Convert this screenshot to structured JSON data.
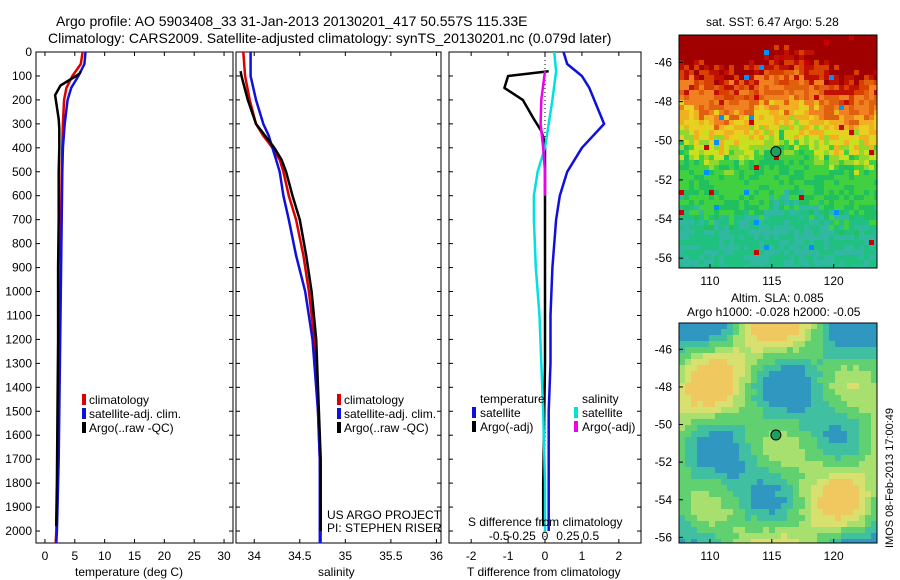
{
  "header": {
    "title_line1": "Argo profile: AO 5903408_33 31-Jan-2013 20130201_417 50.557S 115.33E",
    "title_line2": "Climatology: CARS2009. Satellite-adjusted climatology: synTS_20130201.nc (0.079d later)"
  },
  "credits": {
    "project": "US ARGO PROJECT",
    "pi": "PI: STEPHEN RISER",
    "stamp": "IMOS 08-Feb-2013 17:00:49"
  },
  "colors": {
    "climatology": "#dd0000",
    "satellite": "#1010dd",
    "argo": "#000000",
    "s_satellite": "#00e0e0",
    "s_argo": "#ee00ee"
  },
  "chart_data": [
    {
      "type": "line",
      "name": "temperature-profile",
      "xlabel": "temperature (deg C)",
      "xticks": [
        0,
        5,
        10,
        15,
        20,
        25,
        30
      ],
      "xlim": [
        -1.5,
        31.5
      ],
      "ylim": [
        0,
        2050
      ],
      "yticks": [
        0,
        100,
        200,
        300,
        400,
        500,
        600,
        700,
        800,
        900,
        1000,
        1100,
        1200,
        1300,
        1400,
        1500,
        1600,
        1700,
        1800,
        1900,
        2000
      ],
      "y_reversed": true,
      "legend": [
        "climatology",
        "satellite-adj. clim.",
        "Argo(..raw -QC)"
      ],
      "series": [
        {
          "name": "climatology",
          "color": "#dd0000",
          "x": [
            6.3,
            6.0,
            4.6,
            3.6,
            3.2,
            3.0,
            2.9,
            2.8,
            2.7,
            2.6,
            2.5,
            2.4,
            2.3,
            2.2,
            2.1,
            2.0,
            1.9,
            1.8
          ],
          "y": [
            0,
            50,
            100,
            150,
            200,
            300,
            400,
            500,
            700,
            900,
            1100,
            1300,
            1500,
            1700,
            1800,
            1900,
            2000,
            2050
          ]
        },
        {
          "name": "satellite-adj. clim.",
          "color": "#1010dd",
          "x": [
            6.8,
            6.6,
            5.6,
            4.4,
            3.8,
            3.3,
            3.0,
            2.9,
            2.8,
            2.7,
            2.6,
            2.5,
            2.4,
            2.3,
            2.2,
            2.1,
            2.0,
            1.9
          ],
          "y": [
            0,
            50,
            100,
            150,
            200,
            300,
            400,
            500,
            700,
            900,
            1100,
            1300,
            1500,
            1700,
            1800,
            1900,
            2000,
            2050
          ]
        },
        {
          "name": "Argo(..raw -QC)",
          "color": "#000000",
          "x": [
            6.0,
            5.8,
            5.2,
            2.6,
            1.7,
            2.0,
            2.3,
            2.4,
            2.4,
            2.3,
            2.3,
            2.2,
            2.2,
            2.1,
            2.0,
            1.9,
            1.9
          ],
          "y": [
            80,
            90,
            100,
            140,
            180,
            230,
            280,
            320,
            400,
            500,
            700,
            900,
            1200,
            1500,
            1800,
            1950,
            1980
          ]
        }
      ]
    },
    {
      "type": "line",
      "name": "salinity-profile",
      "xlabel": "salinity",
      "xticks": [
        34,
        34.5,
        35,
        35.5,
        36
      ],
      "xlim": [
        33.8,
        36.05
      ],
      "ylim": [
        0,
        2050
      ],
      "y_reversed": true,
      "legend": [
        "climatology",
        "satellite-adj. clim.",
        "Argo(..raw -QC)"
      ],
      "series": [
        {
          "name": "climatology",
          "color": "#dd0000",
          "x": [
            33.88,
            33.9,
            33.95,
            34.02,
            34.1,
            34.2,
            34.28,
            34.32,
            34.38,
            34.46,
            34.54,
            34.6,
            34.66,
            34.7,
            34.72,
            34.73,
            34.73
          ],
          "y": [
            0,
            100,
            200,
            300,
            350,
            400,
            450,
            500,
            600,
            700,
            850,
            1000,
            1200,
            1500,
            1700,
            1900,
            2050
          ]
        },
        {
          "name": "satellite-adj. clim.",
          "color": "#1010dd",
          "x": [
            33.96,
            33.96,
            34.02,
            34.1,
            34.16,
            34.2,
            34.24,
            34.28,
            34.32,
            34.38,
            34.46,
            34.56,
            34.64,
            34.7,
            34.72,
            34.72,
            34.72
          ],
          "y": [
            0,
            100,
            200,
            300,
            350,
            400,
            450,
            500,
            600,
            700,
            850,
            1000,
            1200,
            1500,
            1700,
            1900,
            2050
          ]
        },
        {
          "name": "Argo(..raw -QC)",
          "color": "#000000",
          "x": [
            33.85,
            33.86,
            33.93,
            34.02,
            34.12,
            34.22,
            34.3,
            34.35,
            34.42,
            34.5,
            34.57,
            34.63,
            34.68,
            34.71,
            34.73,
            34.73,
            34.73
          ],
          "y": [
            80,
            100,
            200,
            300,
            350,
            400,
            450,
            500,
            600,
            700,
            850,
            1000,
            1200,
            1500,
            1700,
            1900,
            2000
          ]
        }
      ]
    },
    {
      "type": "line",
      "name": "difference-profile",
      "xlabel": "T difference from climatology",
      "xlabel_top": "S difference from climatology",
      "xticks": [
        -2,
        -1,
        0,
        1,
        2
      ],
      "xticks_top": [
        "-0.5",
        "-0.25",
        "0",
        "0.25",
        "0.5"
      ],
      "xlim": [
        -2.6,
        2.6
      ],
      "ylim": [
        0,
        2050
      ],
      "y_reversed": true,
      "legend_groups": [
        {
          "title": "temperature",
          "items": [
            "satellite",
            "Argo(-adj)"
          ]
        },
        {
          "title": "salinity",
          "items": [
            "satellite",
            "Argo(-adj)"
          ]
        }
      ],
      "series": [
        {
          "name": "temperature satellite",
          "color": "#1010dd",
          "x": [
            0.5,
            0.6,
            1.0,
            1.2,
            1.6,
            1.0,
            0.6,
            0.4,
            0.3,
            0.2,
            0.15,
            0.15,
            0.1,
            0.1,
            0.1,
            0.1
          ],
          "y": [
            0,
            50,
            100,
            150,
            300,
            400,
            500,
            600,
            700,
            900,
            1100,
            1300,
            1500,
            1700,
            1900,
            2000
          ]
        },
        {
          "name": "temperature Argo(-adj)",
          "color": "#000000",
          "x": [
            0.1,
            -1.0,
            -1.1,
            -0.6,
            -0.3,
            -0.1,
            0.0,
            0.0,
            0.0,
            0.0,
            0.0,
            0.0,
            -0.05,
            -0.05
          ],
          "y": [
            80,
            100,
            150,
            200,
            280,
            330,
            380,
            450,
            600,
            800,
            1000,
            1300,
            1800,
            1980
          ]
        },
        {
          "name": "salinity satellite",
          "color": "#00e0e0",
          "x": [
            0.25,
            0.3,
            0.2,
            0.1,
            0.0,
            -0.2,
            -0.3,
            -0.3,
            -0.25,
            -0.15,
            -0.1,
            -0.05,
            0.0,
            0.0
          ],
          "y": [
            0,
            80,
            200,
            300,
            400,
            500,
            600,
            700,
            900,
            1100,
            1300,
            1500,
            1800,
            2000
          ]
        },
        {
          "name": "salinity Argo(-adj)",
          "color": "#ee00ee",
          "x": [
            0.0,
            -0.1,
            -0.12,
            -0.05,
            0.0,
            0.0
          ],
          "y": [
            80,
            200,
            300,
            400,
            500,
            600
          ]
        }
      ]
    },
    {
      "type": "heatmap",
      "name": "sst-map",
      "title": "sat. SST: 6.47 Argo: 5.28",
      "xticks": [
        110,
        115,
        120
      ],
      "yticks": [
        -46,
        -48,
        -50,
        -52,
        -54,
        -56
      ],
      "xlim": [
        107.5,
        123.5
      ],
      "ylim": [
        -56.5,
        -44.6
      ],
      "marker": {
        "lon": 115.33,
        "lat": -50.557
      }
    },
    {
      "type": "heatmap",
      "name": "sla-map",
      "title_line1": "Altim. SLA: 0.085",
      "title_line2": "Argo h1000: -0.028 h2000: -0.05",
      "xticks": [
        110,
        115,
        120
      ],
      "yticks": [
        -46,
        -48,
        -50,
        -52,
        -54,
        -56
      ],
      "xlim": [
        107.5,
        123.5
      ],
      "ylim": [
        -56.3,
        -44.6
      ],
      "marker": {
        "lon": 115.33,
        "lat": -50.557
      }
    }
  ]
}
